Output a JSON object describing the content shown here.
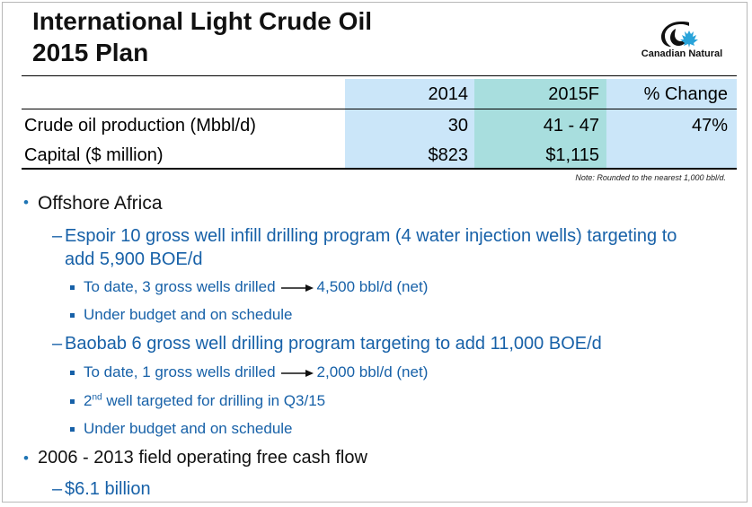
{
  "title": {
    "line1": "International Light Crude Oil",
    "line2": "2015 Plan"
  },
  "logo": {
    "text": "Canadian Natural"
  },
  "colors": {
    "col2014": "#cbe6f9",
    "col2015": "#a8dede",
    "colChange": "#cbe6f9",
    "blue_text": "#1761a8"
  },
  "table": {
    "headers": [
      "2014",
      "2015F",
      "% Change"
    ],
    "rows": [
      {
        "label": "Crude oil production (Mbbl/d)",
        "v2014": "30",
        "v2015": "41 - 47",
        "change": "47%"
      },
      {
        "label": "Capital ($ million)",
        "v2014": "$823",
        "v2015": "$1,115",
        "change": ""
      }
    ],
    "note": "Note: Rounded to the nearest 1,000 bbl/d."
  },
  "bullets": {
    "offshore": "Offshore Africa",
    "espoir": "Espoir 10 gross well infill drilling program (4 water injection wells) targeting to add 5,900 BOE/d",
    "espoir_sub1_a": "To date, 3 gross wells drilled",
    "espoir_sub1_b": "4,500 bbl/d (net)",
    "espoir_sub2": "Under budget and on schedule",
    "baobab": "Baobab 6 gross well drilling program targeting to add 11,000 BOE/d",
    "baobab_sub1_a": "To date, 1 gross wells drilled",
    "baobab_sub1_b": "2,000 bbl/d (net)",
    "baobab_sub2_pre": "2",
    "baobab_sub2_sup": "nd",
    "baobab_sub2_post": " well targeted for drilling in Q3/15",
    "baobab_sub3": "Under budget and on schedule",
    "cashflow": "2006 - 2013 field operating free cash flow",
    "cashflow_sub": "$6.1 billion"
  }
}
